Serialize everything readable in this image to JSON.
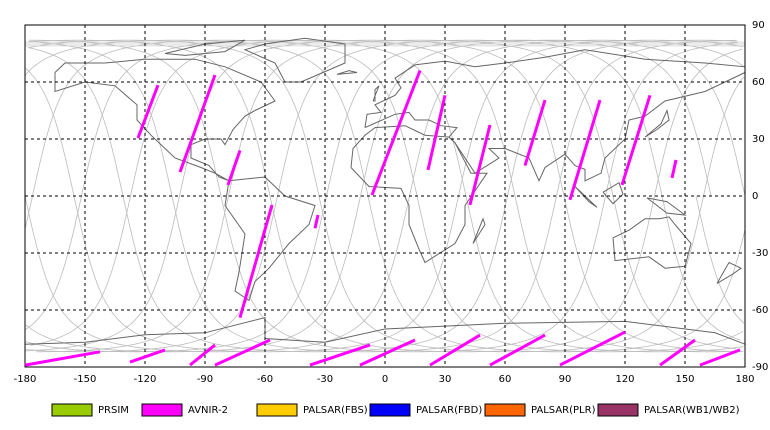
{
  "chart_data": {
    "type": "map",
    "xlim": [
      -180,
      180
    ],
    "ylim": [
      -90,
      90
    ],
    "xticks": [
      -180,
      -150,
      -120,
      -90,
      -60,
      -30,
      0,
      30,
      60,
      90,
      120,
      150,
      180
    ],
    "yticks": [
      90,
      60,
      30,
      0,
      -30,
      -60,
      -90
    ],
    "grid": true,
    "series": [
      {
        "name": "PRSIM",
        "color": "#99cc00",
        "x": [],
        "y": []
      },
      {
        "name": "AVNIR-2",
        "color": "#ff00ff",
        "x": [
          -123.5,
          -113.5,
          null,
          -102.5,
          -85,
          null,
          -78.5,
          -72.5,
          null,
          -72.5,
          -56.5,
          null,
          -35,
          -33.5,
          null,
          -6.5,
          17.5,
          null,
          21.5,
          30,
          null,
          42.5,
          52.5,
          null,
          70,
          80,
          null,
          92.5,
          107.5,
          null,
          118.5,
          132.5,
          null,
          143.5,
          145.5,
          null,
          -180,
          -142.5,
          null,
          -127.5,
          -110,
          null,
          -97.5,
          -85,
          null,
          -85,
          -57.5,
          null,
          -37.5,
          -7.5,
          null,
          -12.5,
          15,
          null,
          22.5,
          47.5,
          null,
          52.5,
          80,
          null,
          87.5,
          120,
          null,
          137.5,
          155,
          null,
          157.5,
          177.5
        ],
        "y": [
          30.5,
          58.4,
          null,
          12.6,
          63.7,
          null,
          5.8,
          24,
          null,
          -64,
          -4.7,
          null,
          -17,
          -10,
          null,
          0.5,
          66,
          null,
          13.7,
          53,
          null,
          -4.7,
          37.4,
          null,
          16,
          50.5,
          null,
          -2,
          50.5,
          null,
          5.8,
          53,
          null,
          9.5,
          19,
          null,
          -89,
          -82,
          null,
          -87.4,
          -81,
          null,
          -89,
          -78.4,
          null,
          -89,
          -75.8,
          null,
          -89,
          -78.4,
          null,
          -89,
          -75.8,
          null,
          -89,
          -73.2,
          null,
          -89,
          -73.2,
          null,
          -89,
          -71.6,
          null,
          -89,
          -75.8,
          null,
          -89,
          -81
        ]
      },
      {
        "name": "PALSAR(FBS)",
        "color": "#ffcc00",
        "x": [],
        "y": []
      },
      {
        "name": "PALSAR(FBD)",
        "color": "#0000ff",
        "x": [],
        "y": []
      },
      {
        "name": "PALSAR(PLR)",
        "color": "#ff6600",
        "x": [],
        "y": []
      },
      {
        "name": "PALSAR(WB1/WB2)",
        "color": "#993366",
        "x": [],
        "y": []
      }
    ]
  }
}
